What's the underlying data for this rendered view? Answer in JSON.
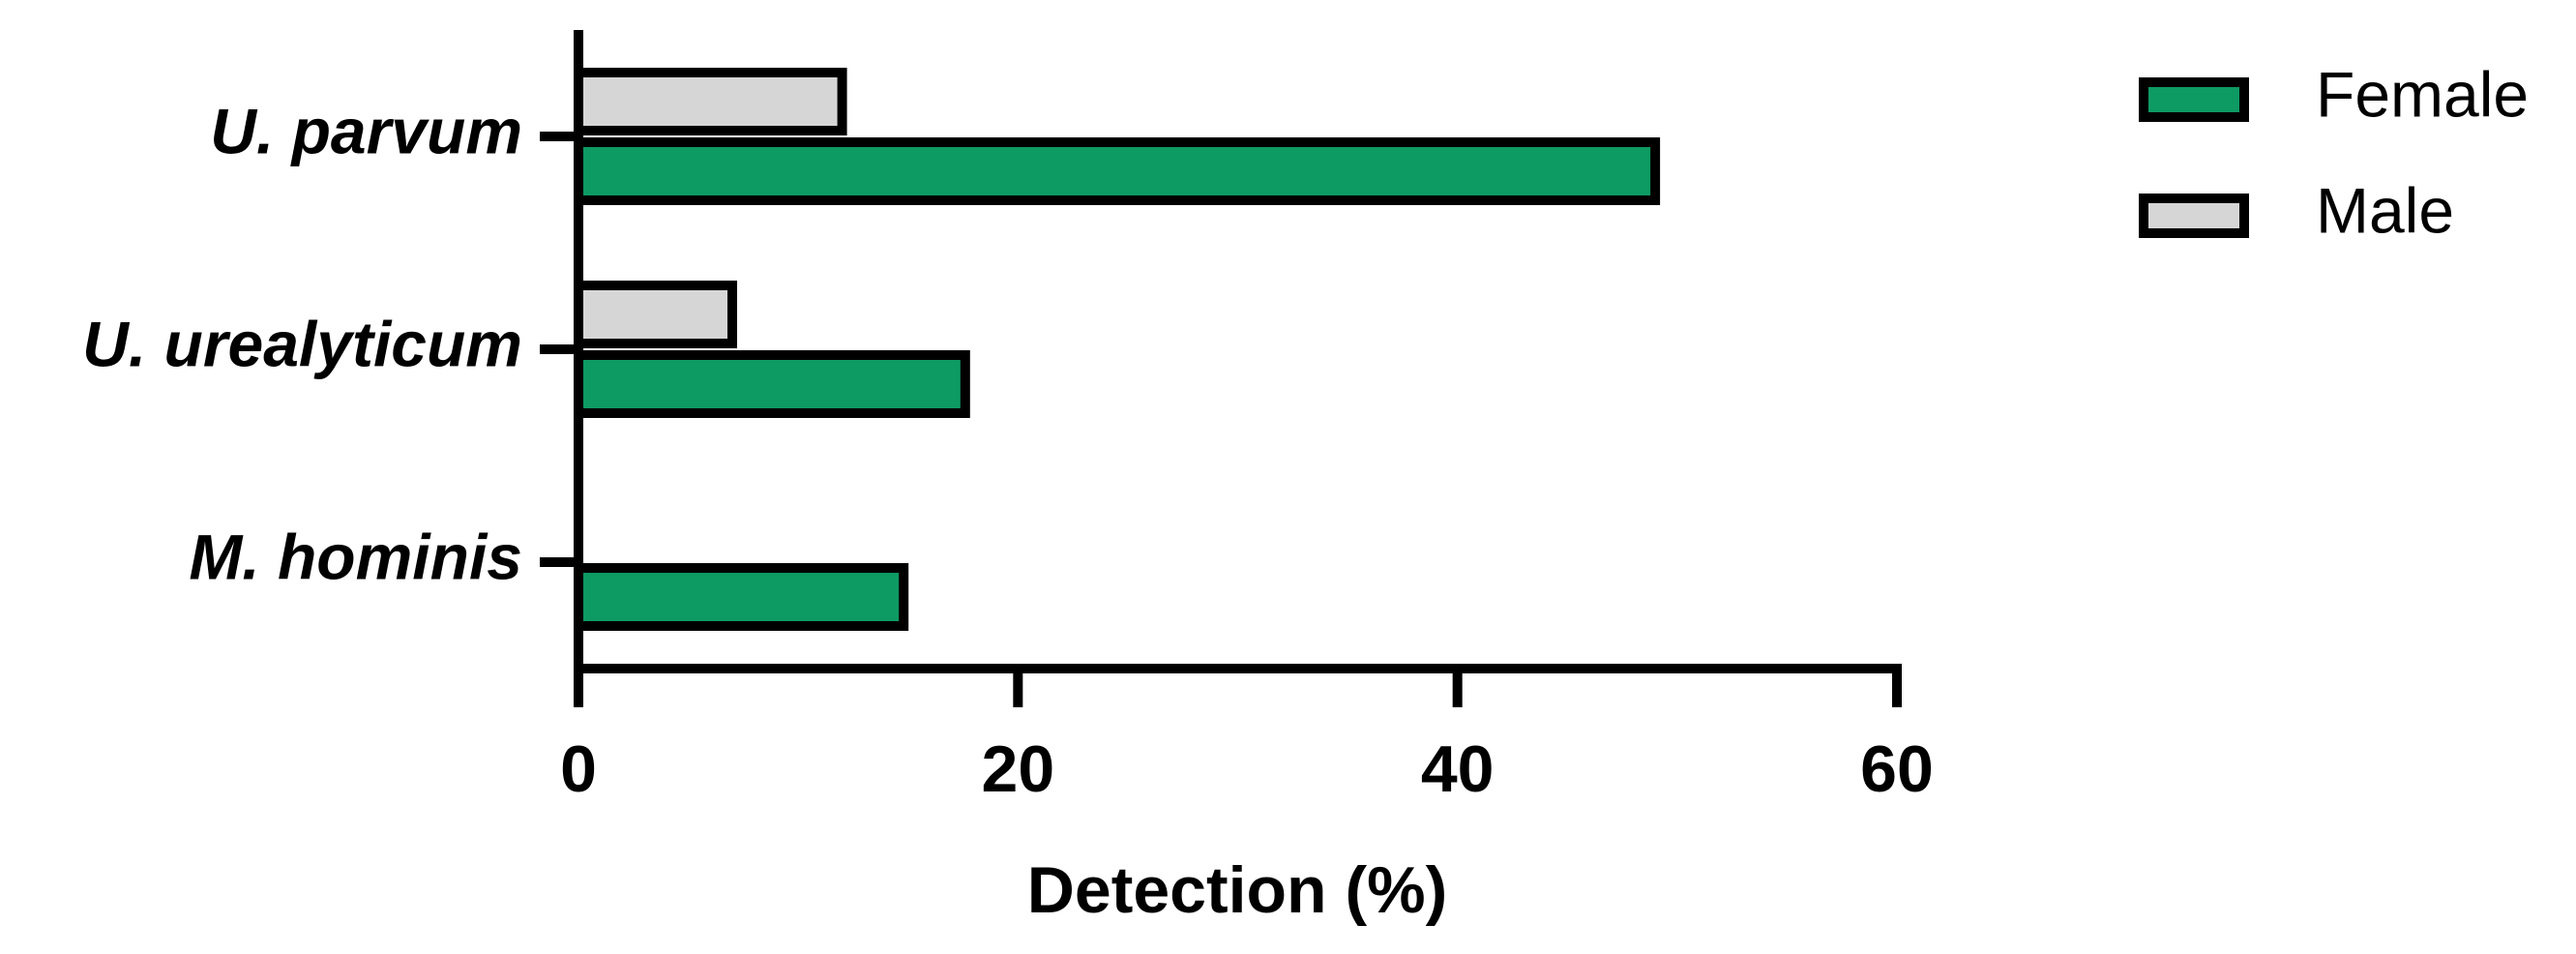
{
  "chart_data": {
    "type": "hbar",
    "xlabel": "Detection (%)",
    "categories": [
      "U. parvum",
      "U. urealyticum",
      "M. hominis"
    ],
    "series": [
      {
        "name": "Female",
        "color": "#0e9a63",
        "values": [
          49,
          17.6,
          14.8
        ]
      },
      {
        "name": "Male",
        "color": "#d6d6d6",
        "values": [
          12,
          7,
          0
        ]
      }
    ],
    "xlim": [
      0,
      60
    ],
    "xticks": [
      0,
      20,
      40,
      60
    ],
    "legend": "upper right"
  }
}
